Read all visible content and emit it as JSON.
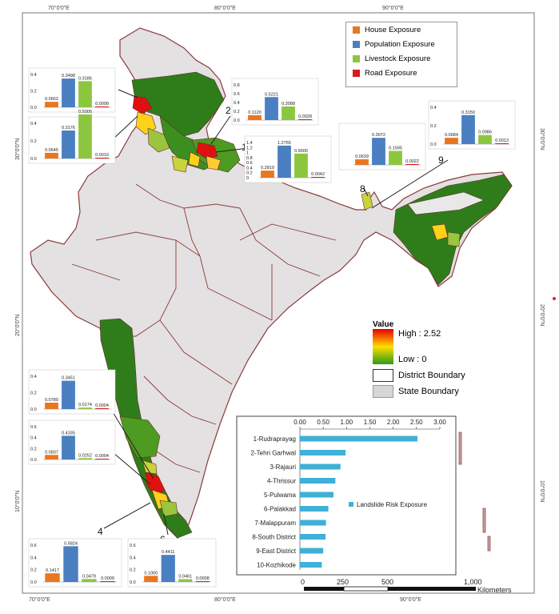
{
  "coords": {
    "top": [
      "70°0'0\"E",
      "80°0'0\"E",
      "90°0'0\"E"
    ],
    "bottom": [
      "70°0'0\"E",
      "80°0'0\"E",
      "90°0'0\"E"
    ],
    "left": [
      "30°0'0\"N",
      "20°0'0\"N",
      "10°0'0\"N"
    ],
    "right": [
      "30°0'0\"N",
      "20°0'0\"N",
      "10°0'0\"N"
    ]
  },
  "legend": {
    "house": "House Exposure",
    "population": "Population Exposure",
    "livestock": "Livestock Exposure",
    "road": "Road Exposure",
    "colors": {
      "house": "#e87722",
      "population": "#4a7fc1",
      "livestock": "#8cc63f",
      "road": "#d81b1b"
    }
  },
  "value_legend": {
    "title": "Value",
    "high": "High : 2.52",
    "low": "Low : 0",
    "district": "District Boundary",
    "state": "State Boundary"
  },
  "scale": {
    "ticks": [
      "0",
      "250",
      "500",
      "1,000"
    ],
    "unit": "Kilometers"
  },
  "region_numbers": [
    "5",
    "3",
    "2",
    "1",
    "8",
    "9",
    "10",
    "7",
    "4",
    "6"
  ],
  "mini_charts": [
    {
      "id": "5",
      "values": [
        0.0662,
        0.3498,
        0.3186,
        0.0008
      ],
      "labels": [
        "0.0662",
        "0.3498",
        "0.3186",
        "0.0008"
      ],
      "yticks": [
        "0.4",
        "0.2",
        "0.0"
      ],
      "ymax": 0.4
    },
    {
      "id": "3",
      "values": [
        0.0645,
        0.3176,
        0.5005,
        0.001
      ],
      "labels": [
        "0.0645",
        "0.3176",
        "0.5005",
        "0.0010"
      ],
      "yticks": [
        "0.4",
        "0.2",
        "0.0"
      ],
      "ymax": 0.4
    },
    {
      "id": "2",
      "values": [
        0.112,
        0.5221,
        0.3088,
        0.0028
      ],
      "labels": [
        "0.1120",
        "0.5221",
        "0.3088",
        "0.0028"
      ],
      "yticks": [
        "0.8",
        "0.6",
        "0.4",
        "0.2",
        "0.0"
      ],
      "ymax": 0.8
    },
    {
      "id": "1",
      "values": [
        0.2819,
        1.2755,
        0.96,
        0.0042
      ],
      "labels": [
        "0.2819",
        "1.2755",
        "0.9600",
        "0.0042"
      ],
      "yticks": [
        "1.4",
        "1.2",
        "1",
        "0.8",
        "0.6",
        "0.4",
        "0.2",
        "0"
      ],
      "ymax": 1.4
    },
    {
      "id": "8",
      "values": [
        0.0639,
        0.3072,
        0.1595,
        0.0022
      ],
      "labels": [
        "0.0639",
        "0.3072",
        "0.1595",
        "0.0022"
      ],
      "yticks": [],
      "ymax": 0.4
    },
    {
      "id": "9",
      "values": [
        0.0684,
        0.315,
        0.0986,
        0.0013
      ],
      "labels": [
        "0.0684",
        "0.3150",
        "0.0986",
        "0.0013"
      ],
      "yticks": [
        "0.4",
        "0.2",
        "0.0"
      ],
      "ymax": 0.4
    },
    {
      "id": "10",
      "values": [
        0.078,
        0.3451,
        0.0174,
        0.0004
      ],
      "labels": [
        "0.0780",
        "0.3451",
        "0.0174",
        "0.0004"
      ],
      "yticks": [
        "0.4",
        "0.2",
        "0.0"
      ],
      "ymax": 0.4
    },
    {
      "id": "7",
      "values": [
        0.0837,
        0.4335,
        0.0252,
        0.0004
      ],
      "labels": [
        "0.0837",
        "0.4335",
        "0.0252",
        "0.0004"
      ],
      "yticks": [
        "0.6",
        "0.4",
        "0.2",
        "0.0"
      ],
      "ymax": 0.6
    },
    {
      "id": "4",
      "values": [
        0.1417,
        0.5824,
        0.0479,
        0.0009
      ],
      "labels": [
        "0.1417",
        "0.5824",
        "0.0479",
        "0.0009"
      ],
      "yticks": [
        "0.6",
        "0.4",
        "0.2",
        "0.0"
      ],
      "ymax": 0.6
    },
    {
      "id": "6",
      "values": [
        0.1,
        0.4411,
        0.0461,
        0.0008
      ],
      "labels": [
        "0.1000",
        "0.4411",
        "0.0461",
        "0.0008"
      ],
      "yticks": [
        "0.6",
        "0.4",
        "0.2",
        "0.0"
      ],
      "ymax": 0.6
    }
  ],
  "chart_data": {
    "type": "bar",
    "orientation": "horizontal",
    "categories": [
      "1-Rudraprayag",
      "2-Tehri Garhwal",
      "3-Rajauri",
      "4-Thrissur",
      "5-Pulwama",
      "6-Palakkad",
      "7-Malappuram",
      "8-South District",
      "9-East District",
      "10-Kozhikode"
    ],
    "values": [
      2.52,
      0.98,
      0.87,
      0.76,
      0.72,
      0.61,
      0.56,
      0.55,
      0.5,
      0.47
    ],
    "xticks": [
      "0.00",
      "0.50",
      "1.00",
      "1.50",
      "2.00",
      "2.50",
      "3.00"
    ],
    "xlim": [
      0,
      3
    ],
    "legend": "Landslide Risk Exposure",
    "color": "#3fb0d6"
  }
}
